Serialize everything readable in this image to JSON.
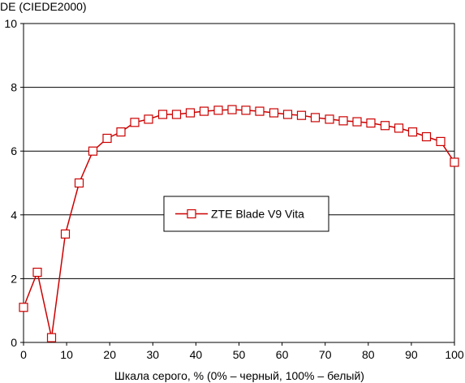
{
  "chart_data": {
    "type": "line",
    "ylabel": "DE (CIEDE2000)",
    "xlabel": "Шкала серого, % (0% – черный, 100% – белый)",
    "xlim": [
      0,
      100
    ],
    "ylim": [
      0,
      10
    ],
    "xticks": [
      "0",
      "10",
      "20",
      "30",
      "40",
      "50",
      "60",
      "70",
      "80",
      "90",
      "100"
    ],
    "yticks": [
      "0",
      "2",
      "4",
      "6",
      "8",
      "10"
    ],
    "grid": "horizontal",
    "legend_position": "center",
    "series": [
      {
        "name": "ZTE Blade V9 Vita",
        "color": "#cc0000",
        "marker": "square",
        "x": [
          0,
          3.2,
          6.5,
          9.7,
          12.9,
          16.1,
          19.4,
          22.6,
          25.8,
          29.0,
          32.3,
          35.5,
          38.7,
          41.9,
          45.2,
          48.4,
          51.6,
          54.8,
          58.1,
          61.3,
          64.5,
          67.7,
          71.0,
          74.2,
          77.4,
          80.6,
          83.9,
          87.1,
          90.3,
          93.5,
          96.8,
          100
        ],
        "y": [
          1.1,
          2.2,
          0.15,
          3.4,
          5.0,
          6.0,
          6.4,
          6.6,
          6.9,
          7.0,
          7.15,
          7.15,
          7.2,
          7.25,
          7.28,
          7.3,
          7.28,
          7.25,
          7.2,
          7.15,
          7.12,
          7.05,
          7.0,
          6.95,
          6.92,
          6.88,
          6.8,
          6.72,
          6.6,
          6.45,
          6.3,
          5.65
        ]
      }
    ]
  }
}
